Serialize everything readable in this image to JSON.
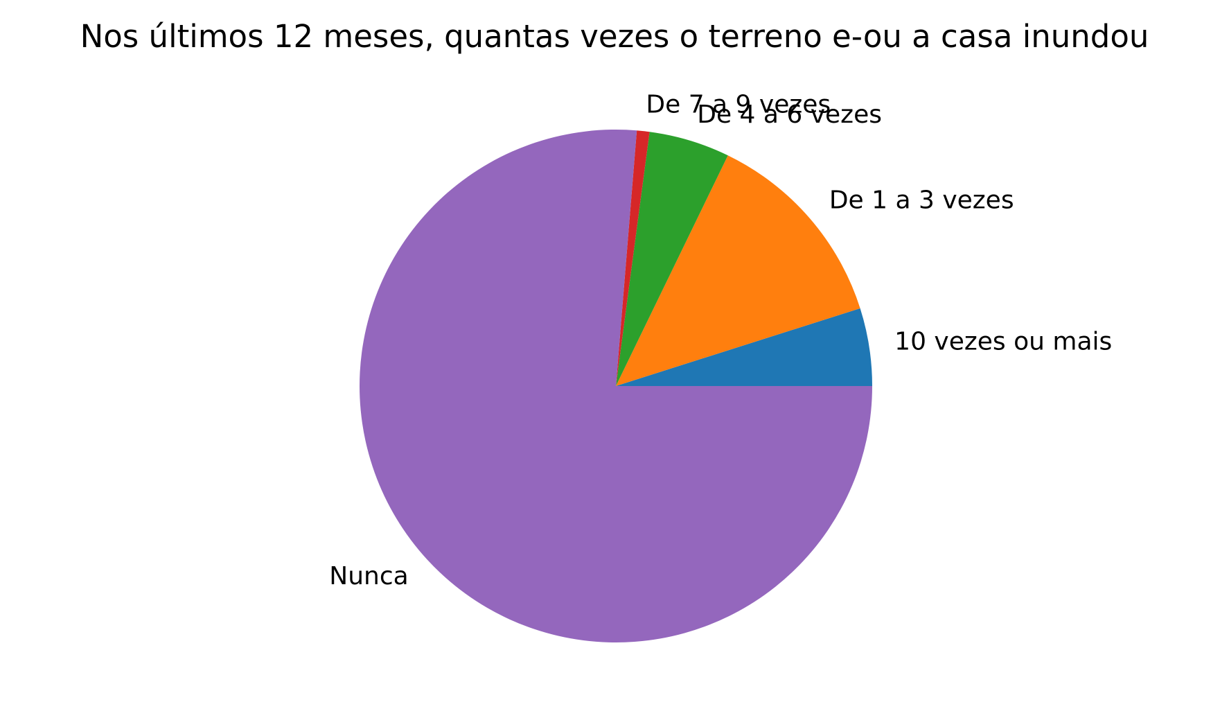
{
  "chart_data": {
    "type": "pie",
    "title": "Nos últimos 12 meses, quantas vezes o terreno e-ou a casa inundou",
    "legend": false,
    "start_angle_deg": 0,
    "direction": "counterclockwise",
    "slices": [
      {
        "label": "10 vezes ou mais",
        "value": 4.9,
        "color": "#1f77b4"
      },
      {
        "label": "De 1 a 3 vezes",
        "value": 12.9,
        "color": "#ff7f0e"
      },
      {
        "label": "De 4 a 6 vezes",
        "value": 5.1,
        "color": "#2ca02c"
      },
      {
        "label": "De 7 a 9 vezes",
        "value": 0.8,
        "color": "#d62728"
      },
      {
        "label": "Nunca",
        "value": 76.3,
        "color": "#9467bd"
      }
    ]
  }
}
